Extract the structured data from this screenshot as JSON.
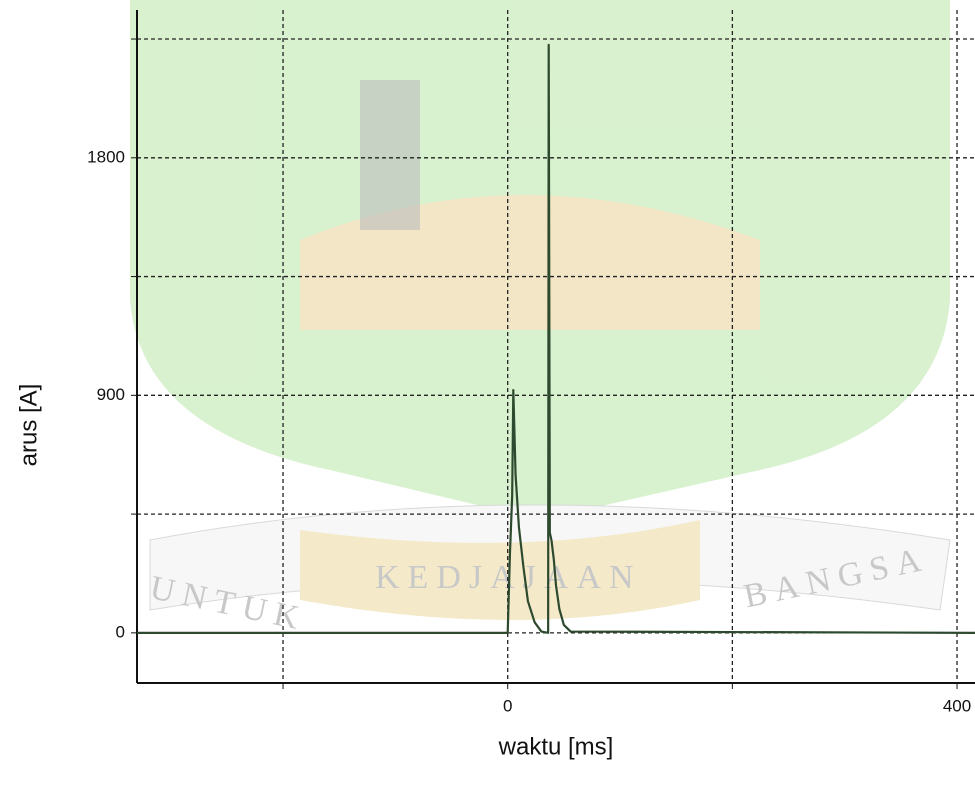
{
  "chart_data": {
    "type": "line",
    "x_label": "waktu [ms]",
    "y_label": "arus [A]",
    "x": [
      -330,
      0,
      2,
      4,
      5,
      7,
      10,
      14,
      18,
      24,
      30,
      36,
      36.5,
      37.5,
      39,
      41,
      43,
      46,
      50,
      56,
      416
    ],
    "series": [
      {
        "color": "#2e4a2e",
        "values": [
          0,
          0,
          300,
          520,
          920,
          600,
          400,
          250,
          120,
          40,
          5,
          0,
          2228,
          380,
          350,
          280,
          180,
          90,
          30,
          5,
          0
        ]
      }
    ],
    "xlim": [
      -330,
      416
    ],
    "ylim": [
      -190,
      2360
    ],
    "xticks": [
      0,
      400
    ],
    "yticks": [
      0,
      900,
      1800
    ],
    "xgrid_minor": [
      -200,
      200
    ],
    "ygrid_minor": [
      450,
      1350,
      2250
    ],
    "grid": true,
    "watermark": [
      "UNTUK",
      "KEDJAJAAN",
      "BANGSA"
    ]
  }
}
